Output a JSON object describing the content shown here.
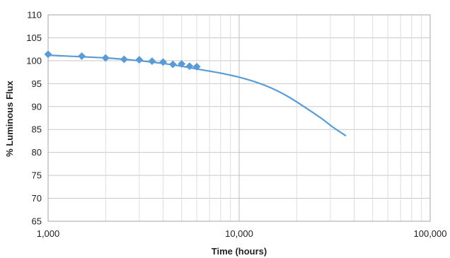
{
  "chart_data": {
    "type": "line",
    "title": "",
    "xlabel": "Time (hours)",
    "ylabel": "% Luminous Flux",
    "x_scale": "log",
    "xlim": [
      1000,
      100000
    ],
    "ylim": [
      65,
      110
    ],
    "x_ticks": [
      1000,
      10000,
      100000
    ],
    "x_tick_labels": [
      "1,000",
      "10,000",
      "100,000"
    ],
    "y_ticks": [
      65,
      70,
      75,
      80,
      85,
      90,
      95,
      100,
      105,
      110
    ],
    "y_tick_labels": [
      "65",
      "70",
      "75",
      "80",
      "85",
      "90",
      "95",
      "100",
      "105",
      "110"
    ],
    "grid": true,
    "legend": "none",
    "series": [
      {
        "type": "scatter",
        "marker": "diamond",
        "color": "#5b9bd5",
        "x": [
          1000,
          1500,
          2000,
          2500,
          3000,
          3500,
          4000,
          4500,
          5000,
          5500,
          6000
        ],
        "y": [
          101.4,
          101.0,
          100.6,
          100.3,
          100.2,
          99.9,
          99.7,
          99.2,
          99.3,
          98.8,
          98.7
        ]
      },
      {
        "type": "line",
        "color": "#5b9bd5",
        "x": [
          1000,
          2000,
          3000,
          4000,
          5000,
          6000,
          8000,
          10000,
          12500,
          15000,
          18000,
          22000,
          27000,
          31000,
          36000
        ],
        "y": [
          101.2,
          100.6,
          100.0,
          99.4,
          98.8,
          98.2,
          97.3,
          96.4,
          95.2,
          93.9,
          92.2,
          89.9,
          87.4,
          85.5,
          83.7
        ]
      }
    ]
  }
}
